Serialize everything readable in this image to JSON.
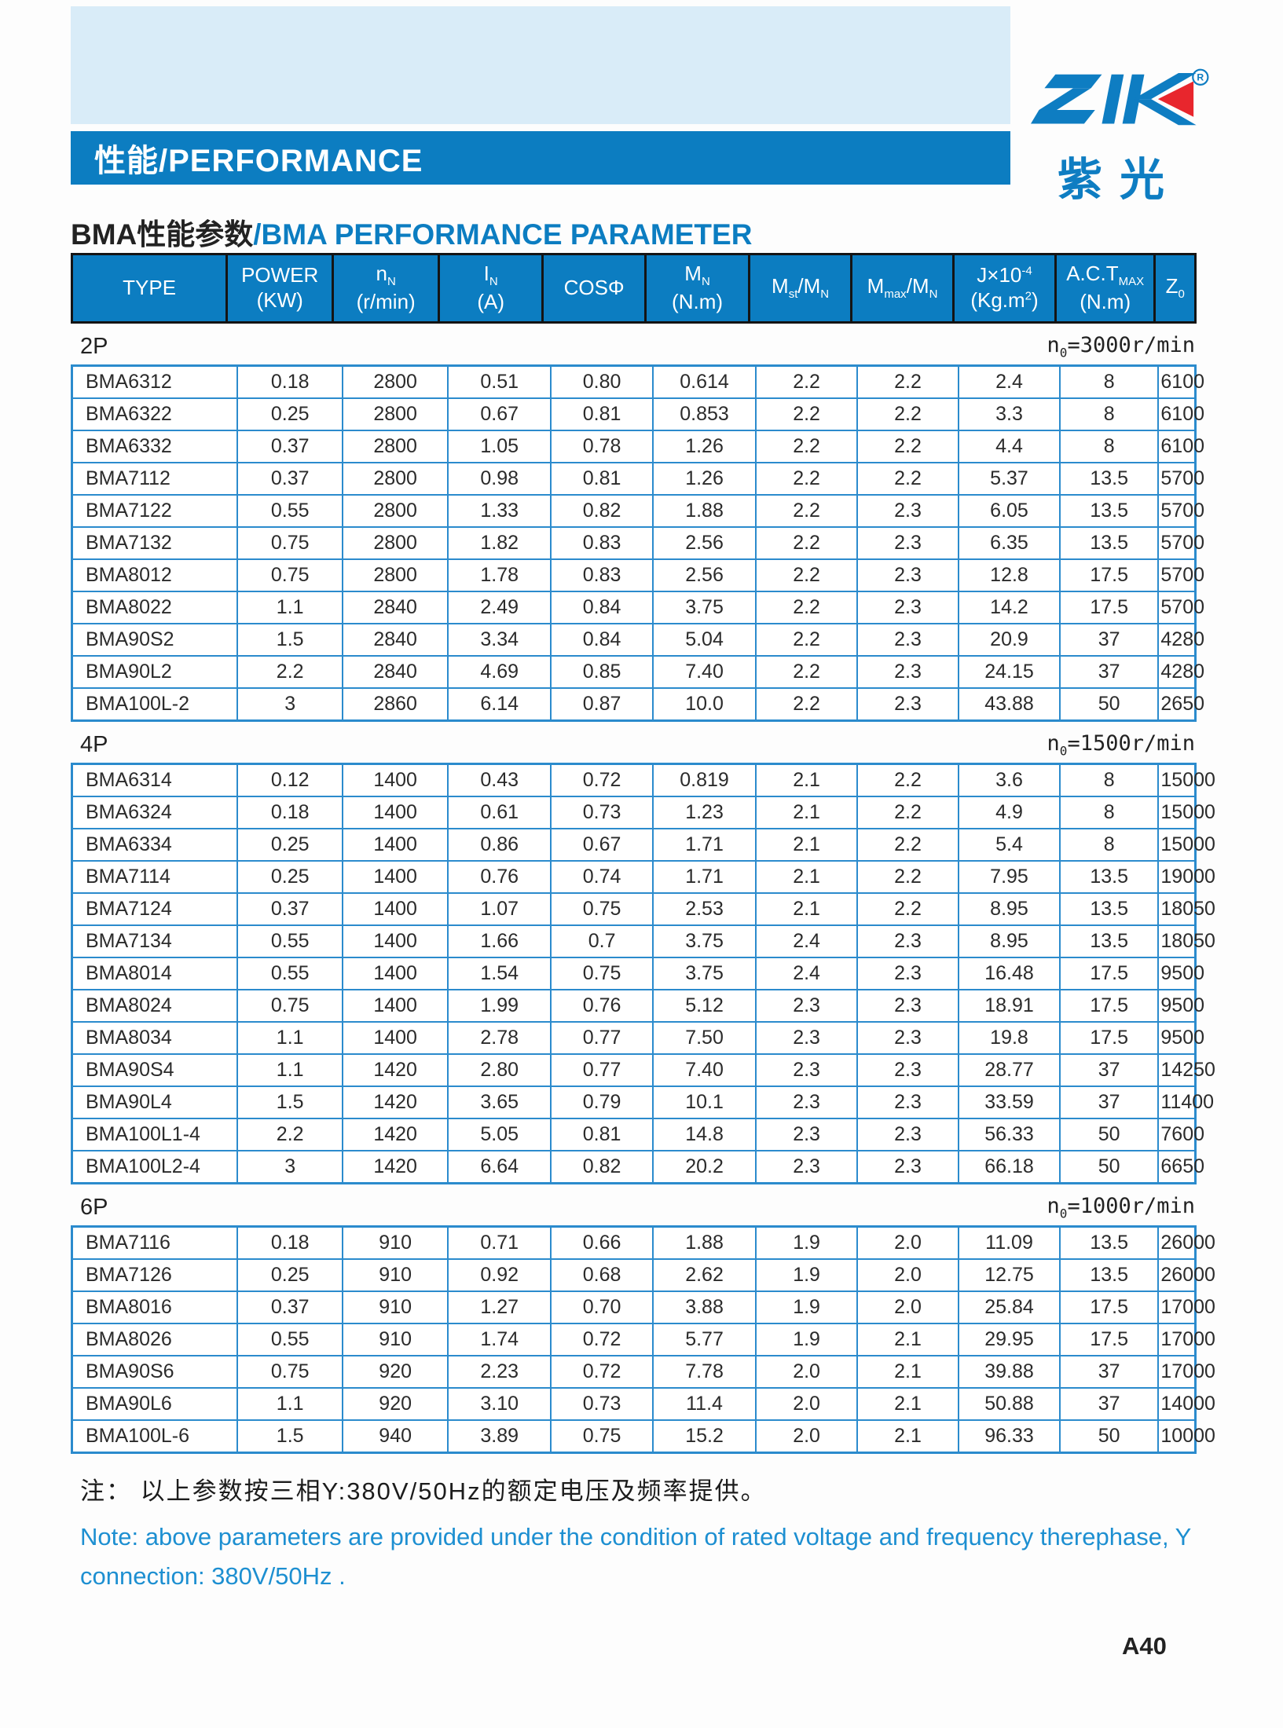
{
  "banner": {
    "title": "性能/PERFORMANCE"
  },
  "logo": {
    "name": "ZIK",
    "registered": "R",
    "subtext": "紫光"
  },
  "heading": {
    "title_cn": "BMA性能参数",
    "title_en": "/BMA PERFORMANCE PARAMETER"
  },
  "colors": {
    "accent_blue": "#0c7dc1",
    "light_blue": "#d9ecf8",
    "table_border_blue": "#2b8bcd",
    "note_blue": "#1d8fd1",
    "logo_red": "#e8262d"
  },
  "table": {
    "columns": [
      {
        "line1": "TYPE",
        "line2": ""
      },
      {
        "line1": "POWER",
        "line2": "(KW)"
      },
      {
        "line1": "n_{N}",
        "line2": "(r/min)"
      },
      {
        "line1": "I_{N}",
        "line2": "(A)"
      },
      {
        "line1": "COSΦ",
        "line2": ""
      },
      {
        "line1": "M_{N}",
        "line2": "(N.m)"
      },
      {
        "line1": "M_{st}/M_{N}",
        "line2": ""
      },
      {
        "line1": "M_{max}/M_{N}",
        "line2": ""
      },
      {
        "line1": "J×10^{-4}",
        "line2": "(Kg.m^{2})"
      },
      {
        "line1": "A.C.T_{MAX}",
        "line2": "(N.m)"
      },
      {
        "line1": "Z_{0}",
        "line2": ""
      }
    ]
  },
  "sections": [
    {
      "label": "2P",
      "n0": "n_{0}=3000r/min",
      "rows": [
        [
          "BMA6312",
          "0.18",
          "2800",
          "0.51",
          "0.80",
          "0.614",
          "2.2",
          "2.2",
          "2.4",
          "8",
          "6100"
        ],
        [
          "BMA6322",
          "0.25",
          "2800",
          "0.67",
          "0.81",
          "0.853",
          "2.2",
          "2.2",
          "3.3",
          "8",
          "6100"
        ],
        [
          "BMA6332",
          "0.37",
          "2800",
          "1.05",
          "0.78",
          "1.26",
          "2.2",
          "2.2",
          "4.4",
          "8",
          "6100"
        ],
        [
          "BMA7112",
          "0.37",
          "2800",
          "0.98",
          "0.81",
          "1.26",
          "2.2",
          "2.2",
          "5.37",
          "13.5",
          "5700"
        ],
        [
          "BMA7122",
          "0.55",
          "2800",
          "1.33",
          "0.82",
          "1.88",
          "2.2",
          "2.3",
          "6.05",
          "13.5",
          "5700"
        ],
        [
          "BMA7132",
          "0.75",
          "2800",
          "1.82",
          "0.83",
          "2.56",
          "2.2",
          "2.3",
          "6.35",
          "13.5",
          "5700"
        ],
        [
          "BMA8012",
          "0.75",
          "2800",
          "1.78",
          "0.83",
          "2.56",
          "2.2",
          "2.3",
          "12.8",
          "17.5",
          "5700"
        ],
        [
          "BMA8022",
          "1.1",
          "2840",
          "2.49",
          "0.84",
          "3.75",
          "2.2",
          "2.3",
          "14.2",
          "17.5",
          "5700"
        ],
        [
          "BMA90S2",
          "1.5",
          "2840",
          "3.34",
          "0.84",
          "5.04",
          "2.2",
          "2.3",
          "20.9",
          "37",
          "4280"
        ],
        [
          "BMA90L2",
          "2.2",
          "2840",
          "4.69",
          "0.85",
          "7.40",
          "2.2",
          "2.3",
          "24.15",
          "37",
          "4280"
        ],
        [
          "BMA100L-2",
          "3",
          "2860",
          "6.14",
          "0.87",
          "10.0",
          "2.2",
          "2.3",
          "43.88",
          "50",
          "2650"
        ]
      ]
    },
    {
      "label": "4P",
      "n0": "n_{0}=1500r/min",
      "rows": [
        [
          "BMA6314",
          "0.12",
          "1400",
          "0.43",
          "0.72",
          "0.819",
          "2.1",
          "2.2",
          "3.6",
          "8",
          "15000"
        ],
        [
          "BMA6324",
          "0.18",
          "1400",
          "0.61",
          "0.73",
          "1.23",
          "2.1",
          "2.2",
          "4.9",
          "8",
          "15000"
        ],
        [
          "BMA6334",
          "0.25",
          "1400",
          "0.86",
          "0.67",
          "1.71",
          "2.1",
          "2.2",
          "5.4",
          "8",
          "15000"
        ],
        [
          "BMA7114",
          "0.25",
          "1400",
          "0.76",
          "0.74",
          "1.71",
          "2.1",
          "2.2",
          "7.95",
          "13.5",
          "19000"
        ],
        [
          "BMA7124",
          "0.37",
          "1400",
          "1.07",
          "0.75",
          "2.53",
          "2.1",
          "2.2",
          "8.95",
          "13.5",
          "18050"
        ],
        [
          "BMA7134",
          "0.55",
          "1400",
          "1.66",
          "0.7",
          "3.75",
          "2.4",
          "2.3",
          "8.95",
          "13.5",
          "18050"
        ],
        [
          "BMA8014",
          "0.55",
          "1400",
          "1.54",
          "0.75",
          "3.75",
          "2.4",
          "2.3",
          "16.48",
          "17.5",
          "9500"
        ],
        [
          "BMA8024",
          "0.75",
          "1400",
          "1.99",
          "0.76",
          "5.12",
          "2.3",
          "2.3",
          "18.91",
          "17.5",
          "9500"
        ],
        [
          "BMA8034",
          "1.1",
          "1400",
          "2.78",
          "0.77",
          "7.50",
          "2.3",
          "2.3",
          "19.8",
          "17.5",
          "9500"
        ],
        [
          "BMA90S4",
          "1.1",
          "1420",
          "2.80",
          "0.77",
          "7.40",
          "2.3",
          "2.3",
          "28.77",
          "37",
          "14250"
        ],
        [
          "BMA90L4",
          "1.5",
          "1420",
          "3.65",
          "0.79",
          "10.1",
          "2.3",
          "2.3",
          "33.59",
          "37",
          "11400"
        ],
        [
          "BMA100L1-4",
          "2.2",
          "1420",
          "5.05",
          "0.81",
          "14.8",
          "2.3",
          "2.3",
          "56.33",
          "50",
          "7600"
        ],
        [
          "BMA100L2-4",
          "3",
          "1420",
          "6.64",
          "0.82",
          "20.2",
          "2.3",
          "2.3",
          "66.18",
          "50",
          "6650"
        ]
      ]
    },
    {
      "label": "6P",
      "n0": "n_{0}=1000r/min",
      "rows": [
        [
          "BMA7116",
          "0.18",
          "910",
          "0.71",
          "0.66",
          "1.88",
          "1.9",
          "2.0",
          "11.09",
          "13.5",
          "26000"
        ],
        [
          "BMA7126",
          "0.25",
          "910",
          "0.92",
          "0.68",
          "2.62",
          "1.9",
          "2.0",
          "12.75",
          "13.5",
          "26000"
        ],
        [
          "BMA8016",
          "0.37",
          "910",
          "1.27",
          "0.70",
          "3.88",
          "1.9",
          "2.0",
          "25.84",
          "17.5",
          "17000"
        ],
        [
          "BMA8026",
          "0.55",
          "910",
          "1.74",
          "0.72",
          "5.77",
          "1.9",
          "2.1",
          "29.95",
          "17.5",
          "17000"
        ],
        [
          "BMA90S6",
          "0.75",
          "920",
          "2.23",
          "0.72",
          "7.78",
          "2.0",
          "2.1",
          "39.88",
          "37",
          "17000"
        ],
        [
          "BMA90L6",
          "1.1",
          "920",
          "3.10",
          "0.73",
          "11.4",
          "2.0",
          "2.1",
          "50.88",
          "37",
          "14000"
        ],
        [
          "BMA100L-6",
          "1.5",
          "940",
          "3.89",
          "0.75",
          "15.2",
          "2.0",
          "2.1",
          "96.33",
          "50",
          "10000"
        ]
      ]
    }
  ],
  "notes": {
    "cn": "注： 以上参数按三相Y:380V/50Hz的额定电压及频率提供。",
    "en_line1": "Note: above parameters are provided under the condition of rated voltage and frequency therephase, Y",
    "en_line2": "connection: 380V/50Hz ."
  },
  "page": {
    "number": "A40"
  }
}
